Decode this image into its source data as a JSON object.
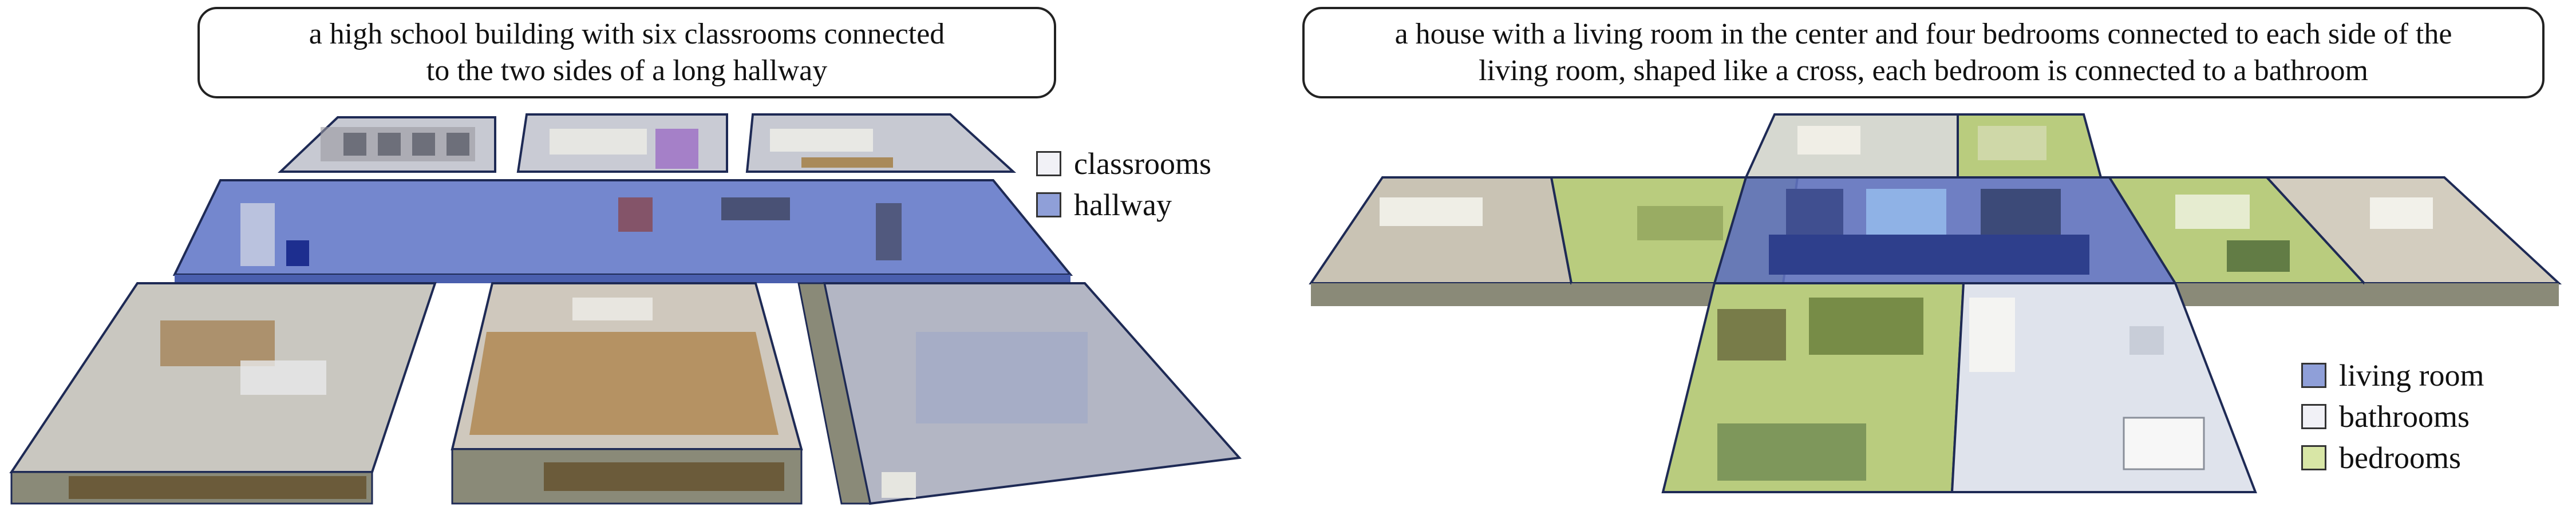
{
  "left_panel": {
    "prompt_line1": "a high school building with six classrooms connected",
    "prompt_line2": "to the two sides of a long hallway",
    "legend": [
      {
        "label": "classrooms",
        "color": "#f1f1f6"
      },
      {
        "label": "hallway",
        "color": "#8f9fd8"
      }
    ]
  },
  "right_panel": {
    "prompt_line1": "a house with a living room in the center and four bedrooms connected to each side of the",
    "prompt_line2": "living room, shaped like a cross, each bedroom is connected to a bathroom",
    "legend": [
      {
        "label": "living room",
        "color": "#8f9fd8"
      },
      {
        "label": "bathrooms",
        "color": "#f1f1f6"
      },
      {
        "label": "bedrooms",
        "color": "#d8e6a6"
      }
    ]
  },
  "colors": {
    "outline": "#1e2a55",
    "wall_exterior": "#8a8a78",
    "wall_exterior_dark": "#6f6f60",
    "classroom_tint": "#c9cbd6",
    "classroom_floor_wood": "#b59263",
    "hallway_tint": "#5c72c6",
    "living_tint": "#5f71bd",
    "bathroom_tint": "#dfe3ec",
    "bedroom_tint": "#b9cc7e"
  }
}
